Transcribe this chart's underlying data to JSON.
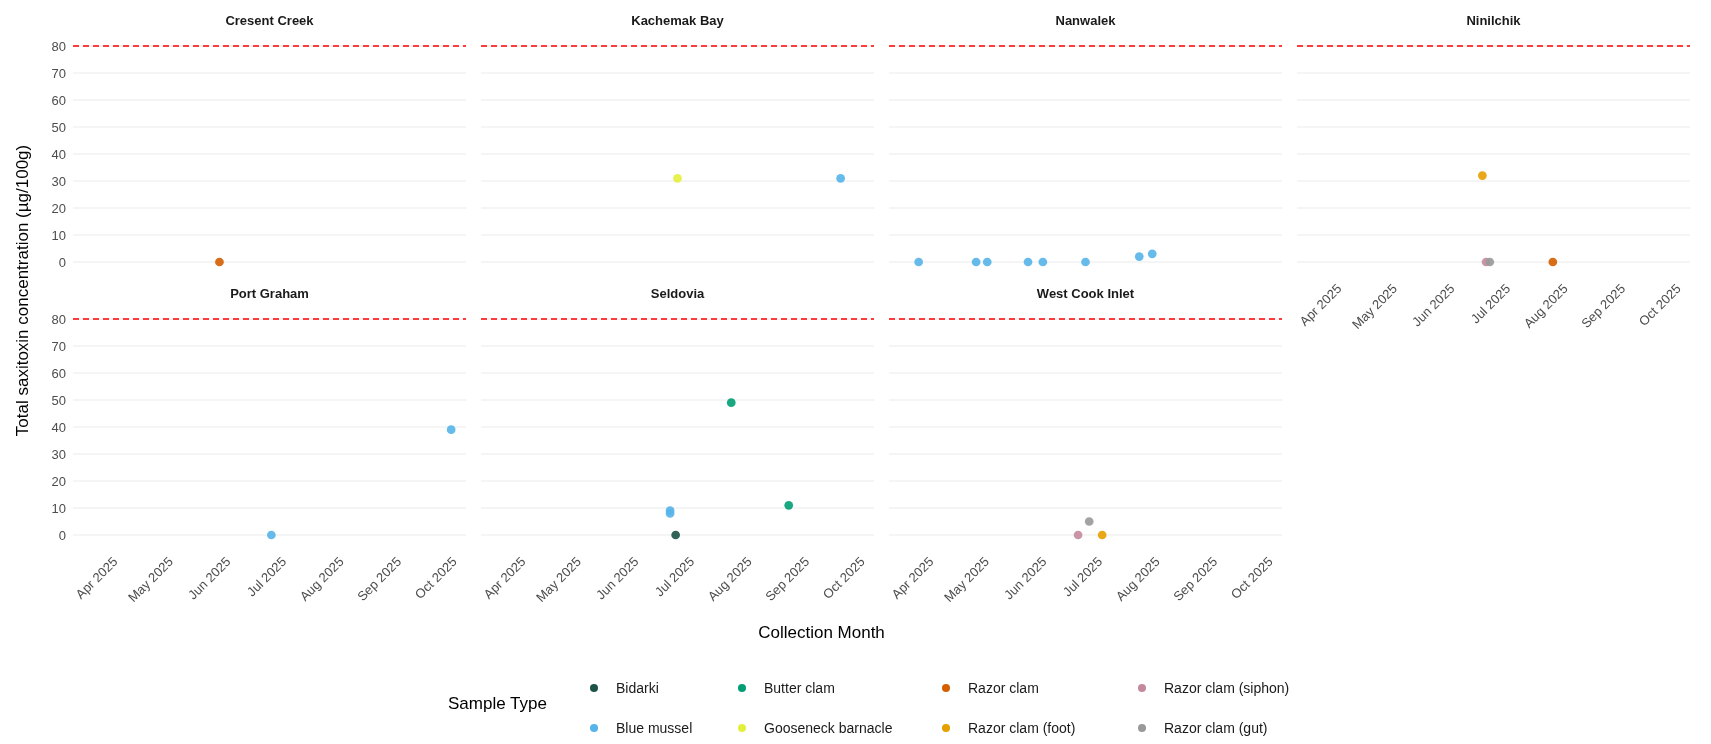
{
  "chart_data": [
    {
      "type": "scatter",
      "title": "Cresent Creek",
      "ylabel": "Total saxitoxin concentration (µg/100g)",
      "legend": "bottom",
      "legend_title": "Sample Type",
      "marker": "circle",
      "grid": "y",
      "tick_labels": "y",
      "xlim": [
        "2025-03-11",
        "2025-10-09"
      ],
      "ylim": [
        0,
        80
      ],
      "yticks": [
        0,
        10,
        20,
        30,
        40,
        50,
        60,
        70,
        80
      ],
      "ref_lines": [
        {
          "axis": "y",
          "value": 80,
          "color": "#ff0000",
          "line_style": "dashed"
        }
      ],
      "series": [
        {
          "name": "Razor clam",
          "color": "#d55e00",
          "x": [
            "2025-05-29"
          ],
          "values": [
            0
          ]
        }
      ]
    },
    {
      "type": "scatter",
      "title": "Kachemak Bay",
      "legend": "bottom",
      "marker": "circle",
      "grid": "y",
      "tick_labels": false,
      "xlim": [
        "2025-03-11",
        "2025-10-09"
      ],
      "ylim": [
        0,
        80
      ],
      "yticks": [
        0,
        10,
        20,
        30,
        40,
        50,
        60,
        70,
        80
      ],
      "ref_lines": [
        {
          "axis": "y",
          "value": 80,
          "color": "#ff0000",
          "line_style": "dashed"
        }
      ],
      "series": [
        {
          "name": "Blue mussel",
          "color": "#56b4e9",
          "x": [
            "2025-09-21"
          ],
          "values": [
            31
          ]
        },
        {
          "name": "Gooseneck barnacle",
          "color": "#e4ef3c",
          "x": [
            "2025-06-25"
          ],
          "values": [
            31
          ]
        }
      ]
    },
    {
      "type": "scatter",
      "title": "Nanwalek",
      "legend": "bottom",
      "marker": "circle",
      "grid": "y",
      "tick_labels": false,
      "xlim": [
        "2025-03-11",
        "2025-10-09"
      ],
      "ylim": [
        0,
        80
      ],
      "yticks": [
        0,
        10,
        20,
        30,
        40,
        50,
        60,
        70,
        80
      ],
      "ref_lines": [
        {
          "axis": "y",
          "value": 80,
          "color": "#ff0000",
          "line_style": "dashed"
        }
      ],
      "series": [
        {
          "name": "Blue mussel",
          "color": "#56b4e9",
          "x": [
            "2025-03-27",
            "2025-04-27",
            "2025-05-03",
            "2025-05-25",
            "2025-06-02",
            "2025-06-25",
            "2025-07-24",
            "2025-07-31"
          ],
          "values": [
            0,
            0,
            0,
            0,
            0,
            0,
            2,
            3
          ]
        }
      ]
    },
    {
      "type": "scatter",
      "title": "Ninilchik",
      "legend": "bottom",
      "marker": "circle",
      "grid": "y",
      "tick_labels": "x",
      "xlim": [
        "2025-03-11",
        "2025-10-09"
      ],
      "xticks": [
        {
          "value": "2025-04-01",
          "label": "Apr 2025"
        },
        {
          "value": "2025-05-01",
          "label": "May 2025"
        },
        {
          "value": "2025-06-01",
          "label": "Jun 2025"
        },
        {
          "value": "2025-07-01",
          "label": "Jul 2025"
        },
        {
          "value": "2025-08-01",
          "label": "Aug 2025"
        },
        {
          "value": "2025-09-01",
          "label": "Sep 2025"
        },
        {
          "value": "2025-10-01",
          "label": "Oct 2025"
        }
      ],
      "ylim": [
        0,
        80
      ],
      "yticks": [
        0,
        10,
        20,
        30,
        40,
        50,
        60,
        70,
        80
      ],
      "ref_lines": [
        {
          "axis": "y",
          "value": 80,
          "color": "#ff0000",
          "line_style": "dashed"
        }
      ],
      "series": [
        {
          "name": "Razor clam",
          "color": "#d55e00",
          "x": [
            "2025-07-27"
          ],
          "values": [
            0
          ]
        },
        {
          "name": "Razor clam (foot)",
          "color": "#e69f00",
          "x": [
            "2025-06-19"
          ],
          "values": [
            32
          ]
        },
        {
          "name": "Razor clam (siphon)",
          "color": "#c4899d",
          "x": [
            "2025-06-21"
          ],
          "values": [
            0
          ]
        },
        {
          "name": "Razor clam (gut)",
          "color": "#999999",
          "x": [
            "2025-06-23"
          ],
          "values": [
            0
          ]
        }
      ]
    },
    {
      "type": "scatter",
      "title": "Port Graham",
      "legend": "bottom",
      "marker": "circle",
      "grid": "y",
      "xlim": [
        "2025-03-11",
        "2025-10-09"
      ],
      "xticks": [
        {
          "value": "2025-04-01",
          "label": "Apr 2025"
        },
        {
          "value": "2025-05-01",
          "label": "May 2025"
        },
        {
          "value": "2025-06-01",
          "label": "Jun 2025"
        },
        {
          "value": "2025-07-01",
          "label": "Jul 2025"
        },
        {
          "value": "2025-08-01",
          "label": "Aug 2025"
        },
        {
          "value": "2025-09-01",
          "label": "Sep 2025"
        },
        {
          "value": "2025-10-01",
          "label": "Oct 2025"
        }
      ],
      "ylim": [
        0,
        80
      ],
      "yticks": [
        0,
        10,
        20,
        30,
        40,
        50,
        60,
        70,
        80
      ],
      "ref_lines": [
        {
          "axis": "y",
          "value": 80,
          "color": "#ff0000",
          "line_style": "dashed"
        }
      ],
      "series": [
        {
          "name": "Blue mussel",
          "color": "#56b4e9",
          "x": [
            "2025-06-26",
            "2025-10-01"
          ],
          "values": [
            0,
            39
          ]
        }
      ]
    },
    {
      "type": "scatter",
      "title": "Seldovia",
      "xlabel": "Collection Month",
      "legend": "bottom",
      "marker": "circle",
      "grid": "y",
      "tick_labels": "x",
      "xlim": [
        "2025-03-11",
        "2025-10-09"
      ],
      "xticks": [
        {
          "value": "2025-04-01",
          "label": "Apr 2025"
        },
        {
          "value": "2025-05-01",
          "label": "May 2025"
        },
        {
          "value": "2025-06-01",
          "label": "Jun 2025"
        },
        {
          "value": "2025-07-01",
          "label": "Jul 2025"
        },
        {
          "value": "2025-08-01",
          "label": "Aug 2025"
        },
        {
          "value": "2025-09-01",
          "label": "Sep 2025"
        },
        {
          "value": "2025-10-01",
          "label": "Oct 2025"
        }
      ],
      "ylim": [
        0,
        80
      ],
      "yticks": [
        0,
        10,
        20,
        30,
        40,
        50,
        60,
        70,
        80
      ],
      "ref_lines": [
        {
          "axis": "y",
          "value": 80,
          "color": "#ff0000",
          "line_style": "dashed"
        }
      ],
      "series": [
        {
          "name": "Bidarki",
          "color": "#1d5246",
          "x": [
            "2025-06-24"
          ],
          "values": [
            0
          ]
        },
        {
          "name": "Blue mussel",
          "color": "#56b4e9",
          "x": [
            "2025-06-21",
            "2025-06-21"
          ],
          "values": [
            9,
            8
          ]
        },
        {
          "name": "Butter clam",
          "color": "#009e73",
          "x": [
            "2025-07-24",
            "2025-08-24"
          ],
          "values": [
            49,
            11
          ]
        }
      ]
    },
    {
      "type": "scatter",
      "title": "West Cook Inlet",
      "legend": "bottom",
      "marker": "circle",
      "grid": "y",
      "tick_labels": "x",
      "xlim": [
        "2025-03-11",
        "2025-10-09"
      ],
      "xticks": [
        {
          "value": "2025-04-01",
          "label": "Apr 2025"
        },
        {
          "value": "2025-05-01",
          "label": "May 2025"
        },
        {
          "value": "2025-06-01",
          "label": "Jun 2025"
        },
        {
          "value": "2025-07-01",
          "label": "Jul 2025"
        },
        {
          "value": "2025-08-01",
          "label": "Aug 2025"
        },
        {
          "value": "2025-09-01",
          "label": "Sep 2025"
        },
        {
          "value": "2025-10-01",
          "label": "Oct 2025"
        }
      ],
      "ylim": [
        0,
        80
      ],
      "yticks": [
        0,
        10,
        20,
        30,
        40,
        50,
        60,
        70,
        80
      ],
      "ref_lines": [
        {
          "axis": "y",
          "value": 80,
          "color": "#ff0000",
          "line_style": "dashed"
        }
      ],
      "series": [
        {
          "name": "Razor clam (foot)",
          "color": "#e69f00",
          "x": [
            "2025-07-04"
          ],
          "values": [
            0
          ]
        },
        {
          "name": "Razor clam (siphon)",
          "color": "#c4899d",
          "x": [
            "2025-06-21"
          ],
          "values": [
            0
          ]
        },
        {
          "name": "Razor clam (gut)",
          "color": "#999999",
          "x": [
            "2025-06-27"
          ],
          "values": [
            5
          ]
        }
      ]
    }
  ]
}
